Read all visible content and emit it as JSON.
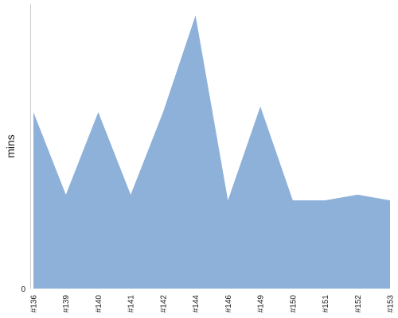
{
  "chart_data": {
    "type": "area",
    "title": "",
    "xlabel": "",
    "ylabel": "mins",
    "categories": [
      "#136",
      "#139",
      "#140",
      "#141",
      "#142",
      "#144",
      "#146",
      "#149",
      "#150",
      "#151",
      "#152",
      "#153"
    ],
    "series": [
      {
        "values": [
          62,
          33,
          62,
          33,
          62,
          96,
          31,
          64,
          31,
          31,
          33,
          31
        ],
        "color": "#8eb1d9"
      }
    ],
    "ylim": [
      0,
      100
    ],
    "y_ticks": [
      0
    ],
    "y_tick_labels": [
      "0"
    ],
    "grid": false,
    "axis_color": "#cccccc"
  }
}
